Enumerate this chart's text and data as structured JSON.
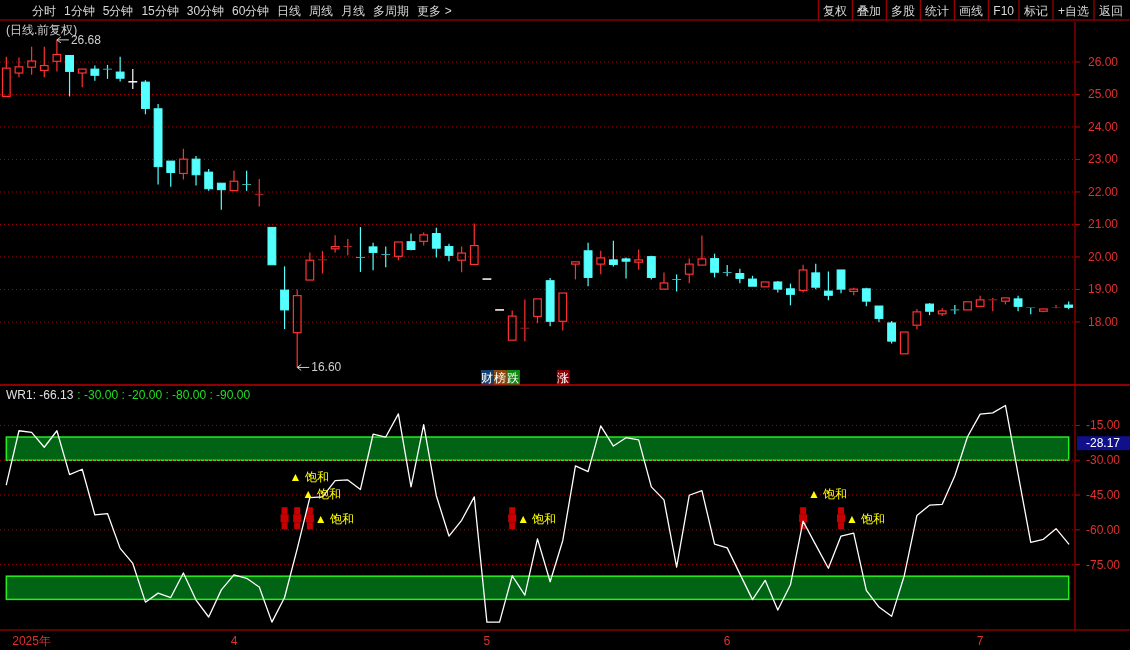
{
  "chart_data": [
    {
      "type": "other",
      "annotations": [
        "分时",
        "1分钟",
        "5分钟",
        "15分钟",
        "30分钟",
        "60分钟",
        "日线",
        "周线",
        "月线",
        "多周期",
        "更多 >"
      ]
    },
    {
      "type": "other",
      "annotations": [
        "复权",
        "叠加",
        "多股",
        "统计",
        "画线",
        "F10",
        "标记",
        "+自选",
        "返回"
      ]
    },
    {
      "type": "candlestick",
      "title": "(日线.前复权)",
      "categories": [
        null,
        null,
        null,
        null,
        null,
        null,
        null,
        null,
        null,
        null,
        null,
        null,
        null,
        null,
        null,
        null,
        null,
        null,
        null,
        null,
        null,
        null,
        null,
        null,
        null,
        null,
        null,
        null,
        null,
        null,
        null,
        null,
        null,
        null,
        null,
        null,
        null,
        null,
        null,
        null,
        null,
        null,
        null,
        null,
        null,
        null,
        null,
        null,
        null,
        null,
        null,
        null,
        null,
        null,
        null,
        null,
        null,
        null,
        null,
        null,
        null,
        null,
        null,
        null,
        null,
        null,
        null,
        null,
        null,
        null,
        null,
        null,
        null,
        null,
        null,
        null,
        null,
        null,
        null,
        null,
        null,
        null,
        null,
        null,
        null
      ],
      "ohlc": [
        [
          24.94,
          26.16,
          24.94,
          25.81
        ],
        [
          25.66,
          26.14,
          25.53,
          25.85
        ],
        [
          25.84,
          26.47,
          25.61,
          26.03
        ],
        [
          25.74,
          26.47,
          25.53,
          25.89
        ],
        [
          26.02,
          26.68,
          25.71,
          26.23
        ],
        [
          26.2,
          26.2,
          24.94,
          25.71
        ],
        [
          25.66,
          25.78,
          25.22,
          25.78
        ],
        [
          25.78,
          25.89,
          25.42,
          25.59
        ],
        [
          25.79,
          25.91,
          25.48,
          25.77
        ],
        [
          25.69,
          26.16,
          25.4,
          25.5
        ],
        [
          25.39,
          25.78,
          25.17,
          25.39
        ],
        [
          25.38,
          25.44,
          24.39,
          24.57
        ],
        [
          24.56,
          24.71,
          22.23,
          22.78
        ],
        [
          22.95,
          22.95,
          22.16,
          22.6
        ],
        [
          22.57,
          23.33,
          22.38,
          23.01
        ],
        [
          23.01,
          23.11,
          22.2,
          22.53
        ],
        [
          22.61,
          22.71,
          22.04,
          22.1
        ],
        [
          22.27,
          22.27,
          21.45,
          22.07
        ],
        [
          22.04,
          22.65,
          22.04,
          22.33
        ],
        [
          22.24,
          22.65,
          22.04,
          22.22
        ],
        [
          21.92,
          22.4,
          21.55,
          21.94
        ],
        [
          20.91,
          20.91,
          19.76,
          19.76
        ],
        [
          18.98,
          19.71,
          17.78,
          18.37
        ],
        [
          17.67,
          19.0,
          16.6,
          18.81
        ],
        [
          19.29,
          20.14,
          19.29,
          19.9
        ],
        [
          19.9,
          20.18,
          19.49,
          19.92
        ],
        [
          20.25,
          20.67,
          20.14,
          20.32
        ],
        [
          20.31,
          20.55,
          20.05,
          20.33
        ],
        [
          20.0,
          20.92,
          19.54,
          19.98
        ],
        [
          20.31,
          20.44,
          19.59,
          20.14
        ],
        [
          20.08,
          20.32,
          19.68,
          20.06
        ],
        [
          20.02,
          20.46,
          19.9,
          20.46
        ],
        [
          20.47,
          20.72,
          20.21,
          20.23
        ],
        [
          20.48,
          20.75,
          20.35,
          20.68
        ],
        [
          20.72,
          20.9,
          19.98,
          20.27
        ],
        [
          20.32,
          20.41,
          19.87,
          20.05
        ],
        [
          19.9,
          20.32,
          19.53,
          20.12
        ],
        [
          19.77,
          21.03,
          19.77,
          20.35
        ],
        [
          19.32,
          19.32,
          19.32,
          19.32
        ],
        [
          18.37,
          18.37,
          18.37,
          18.37
        ],
        [
          17.44,
          18.35,
          17.44,
          18.18
        ],
        [
          17.8,
          18.69,
          17.41,
          17.82
        ],
        [
          18.17,
          18.71,
          17.96,
          18.71
        ],
        [
          19.27,
          19.35,
          17.87,
          18.02
        ],
        [
          18.02,
          18.89,
          17.74,
          18.89
        ],
        [
          19.78,
          19.85,
          19.31,
          19.85
        ],
        [
          20.19,
          20.44,
          19.1,
          19.37
        ],
        [
          19.78,
          20.19,
          19.47,
          19.97
        ],
        [
          19.91,
          20.5,
          19.71,
          19.77
        ],
        [
          19.94,
          19.98,
          19.34,
          19.87
        ],
        [
          19.84,
          20.23,
          19.61,
          19.91
        ],
        [
          20.01,
          20.04,
          19.31,
          19.37
        ],
        [
          19.01,
          19.52,
          19.01,
          19.2
        ],
        [
          19.32,
          19.46,
          18.94,
          19.3
        ],
        [
          19.47,
          19.95,
          19.19,
          19.78
        ],
        [
          19.75,
          20.66,
          19.75,
          19.94
        ],
        [
          19.95,
          20.1,
          19.37,
          19.53
        ],
        [
          19.53,
          19.75,
          19.41,
          19.51
        ],
        [
          19.49,
          19.64,
          19.19,
          19.34
        ],
        [
          19.32,
          19.42,
          19.1,
          19.1
        ],
        [
          19.08,
          19.23,
          19.08,
          19.23
        ],
        [
          19.23,
          19.26,
          18.91,
          19.01
        ],
        [
          19.02,
          19.18,
          18.51,
          18.85
        ],
        [
          18.97,
          19.76,
          18.91,
          19.6
        ],
        [
          19.51,
          19.79,
          19.01,
          19.07
        ],
        [
          18.95,
          19.55,
          18.67,
          18.82
        ],
        [
          19.6,
          19.6,
          18.88,
          19.01
        ],
        [
          18.94,
          19.05,
          18.82,
          19.01
        ],
        [
          19.02,
          19.05,
          18.48,
          18.64
        ],
        [
          18.49,
          18.49,
          17.99,
          18.11
        ],
        [
          17.97,
          18.03,
          17.34,
          17.41
        ],
        [
          17.02,
          17.69,
          17.02,
          17.69
        ],
        [
          17.9,
          18.4,
          17.77,
          18.31
        ],
        [
          18.55,
          18.58,
          18.21,
          18.33
        ],
        [
          18.25,
          18.42,
          18.18,
          18.34
        ],
        [
          18.38,
          18.52,
          18.24,
          18.36
        ],
        [
          18.37,
          18.62,
          18.37,
          18.62
        ],
        [
          18.48,
          18.81,
          18.48,
          18.68
        ],
        [
          18.67,
          18.74,
          18.33,
          18.69
        ],
        [
          18.64,
          18.74,
          18.54,
          18.74
        ],
        [
          18.71,
          18.81,
          18.33,
          18.48
        ],
        [
          18.44,
          18.44,
          18.24,
          18.43
        ],
        [
          18.33,
          18.4,
          18.3,
          18.4
        ],
        [
          18.45,
          18.52,
          18.42,
          18.46
        ],
        [
          18.52,
          18.63,
          18.39,
          18.45
        ]
      ],
      "ylim": [
        16.06,
        27.23
      ],
      "yticks": [
        {
          "value": 18,
          "label": "18.00"
        },
        {
          "value": 19,
          "label": "19.00"
        },
        {
          "value": 20,
          "label": "20.00"
        },
        {
          "value": 21,
          "label": "21.00"
        },
        {
          "value": 22,
          "label": "22.00"
        },
        {
          "value": 23,
          "label": "23.00"
        },
        {
          "value": 24,
          "label": "24.00"
        },
        {
          "value": 25,
          "label": "25.00"
        },
        {
          "value": 26,
          "label": "26.00"
        }
      ],
      "grid": "y",
      "tick_labels": "y",
      "annotations": [
        "26.68",
        "16.60",
        "财榜跌",
        "涨"
      ]
    },
    {
      "type": "line",
      "title": "WR1: -66.13",
      "subtitle": ": -30.00 : -20.00 : -80.00 : -90.00",
      "categories": [
        null,
        null,
        "2025年",
        null,
        null,
        null,
        null,
        null,
        null,
        null,
        null,
        null,
        null,
        null,
        null,
        null,
        null,
        null,
        "4",
        null,
        null,
        null,
        null,
        null,
        null,
        null,
        null,
        null,
        null,
        null,
        null,
        null,
        null,
        null,
        null,
        null,
        null,
        null,
        "5",
        null,
        null,
        null,
        null,
        null,
        null,
        null,
        null,
        null,
        null,
        null,
        null,
        null,
        null,
        null,
        null,
        null,
        null,
        "6",
        null,
        null,
        null,
        null,
        null,
        null,
        null,
        null,
        null,
        null,
        null,
        null,
        null,
        null,
        null,
        null,
        null,
        null,
        null,
        "7",
        null,
        null,
        null,
        null,
        null,
        null,
        null
      ],
      "series": [
        {
          "type": "line",
          "color": "#ffffff",
          "values": [
            -40.5,
            -17.3,
            -18,
            -24.4,
            -17.3,
            -36.2,
            -33.9,
            -53.6,
            -53,
            -68,
            -74.5,
            -91.2,
            -87.3,
            -89.2,
            -78.6,
            -90.3,
            -97.6,
            -85.9,
            -79.4,
            -80.9,
            -84.7,
            -99.8,
            -89.2,
            -68.2,
            -46.1,
            -45.8,
            -38.8,
            -38.5,
            -42.6,
            -18.8,
            -20,
            -10,
            -41.5,
            -14.7,
            -45.3,
            -62.7,
            -55.9,
            -45.8,
            -99.8,
            -99.8,
            -79.8,
            -88.2,
            -63.9,
            -82.4,
            -64.6,
            -32.4,
            -34.9,
            -15.2,
            -23.9,
            -20.3,
            -21.2,
            -41.5,
            -47.1,
            -76.1,
            -45.1,
            -43.1,
            -66.2,
            -67.8,
            -79,
            -90.1,
            -81.8,
            -94.6,
            -83.7,
            -56.3,
            -66.5,
            -76.6,
            -62.7,
            -61.4,
            -86.1,
            -93.3,
            -97.3,
            -79.8,
            -53.8,
            -49.4,
            -49,
            -36.7,
            -19.9,
            -10.1,
            -9.6,
            -6.4,
            -36,
            -65.4,
            -64.1,
            -59.5,
            -66.1
          ]
        },
        {
          "type": "scatter",
          "color": "#c80000",
          "values": [
            null,
            null,
            null,
            null,
            null,
            null,
            null,
            null,
            null,
            null,
            null,
            null,
            null,
            null,
            null,
            null,
            null,
            null,
            null,
            null,
            null,
            null,
            -55,
            -55,
            -55,
            null,
            null,
            null,
            null,
            null,
            null,
            null,
            null,
            null,
            null,
            null,
            null,
            null,
            null,
            null,
            -55,
            null,
            null,
            null,
            null,
            null,
            null,
            null,
            null,
            null,
            null,
            null,
            null,
            null,
            null,
            null,
            null,
            null,
            null,
            null,
            null,
            null,
            null,
            -55,
            null,
            null,
            -55,
            null,
            null,
            null,
            null,
            null,
            null,
            null,
            null,
            null,
            null,
            null,
            null,
            null,
            null,
            null,
            null,
            null,
            null
          ]
        }
      ],
      "ylim": [
        -103.2,
        2
      ],
      "yticks": [
        {
          "value": -15,
          "label": "-15.00"
        },
        {
          "value": -30,
          "label": "-30.00"
        },
        {
          "value": -45,
          "label": "-45.00"
        },
        {
          "value": -60,
          "label": "-60.00"
        },
        {
          "value": -75,
          "label": "-75.00"
        }
      ],
      "grid": "y",
      "line_style": "solid",
      "bands": [
        {
          "axis": "y",
          "from": -30,
          "to": -20,
          "color": "#006414"
        },
        {
          "axis": "y",
          "from": -90,
          "to": -80,
          "color": "#006414"
        }
      ],
      "annotations": [
        "▲ 饱和",
        "▲ 饱和",
        "▲ 饱和",
        "▲ 饱和",
        "▲ 饱和",
        "▲ 饱和",
        "-28.17"
      ]
    }
  ]
}
